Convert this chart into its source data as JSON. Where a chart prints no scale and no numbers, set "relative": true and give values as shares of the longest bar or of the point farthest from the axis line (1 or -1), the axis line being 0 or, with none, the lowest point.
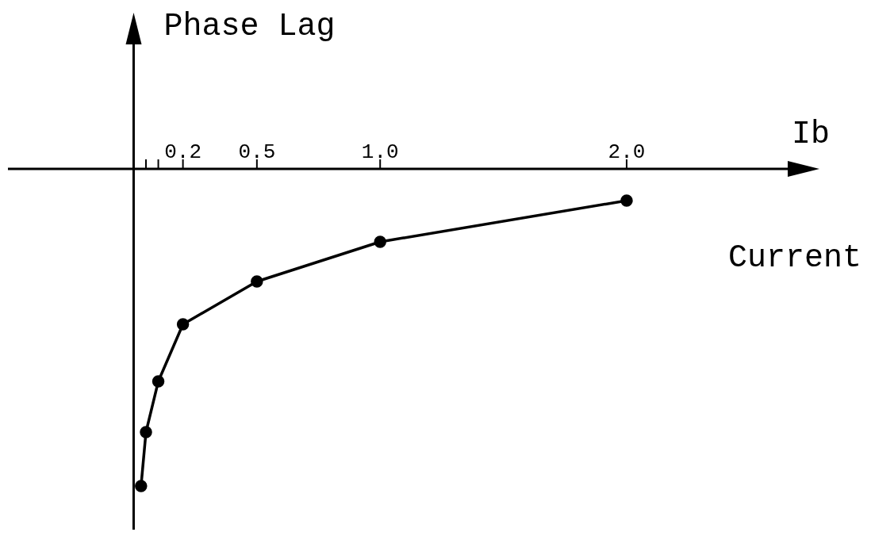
{
  "chart_data": {
    "type": "line",
    "ylabel": "Phase Lag",
    "xlabel": "Ib",
    "annotations": [
      "Current"
    ],
    "x": [
      0.03,
      0.05,
      0.1,
      0.2,
      0.5,
      1.0,
      2.0
    ],
    "series": [
      {
        "color": "#000000",
        "values": [
          -1,
          -0.83,
          -0.67,
          -0.49,
          -0.355,
          -0.23,
          -0.1
        ]
      }
    ],
    "relative": true,
    "marker": "circle",
    "line_style": "solid",
    "xlim": [
      -0.51,
      2.75
    ],
    "xticks": [
      {
        "value": 0.05,
        "label": null
      },
      {
        "value": 0.1,
        "label": null
      },
      {
        "value": 0.2,
        "label": "0.2"
      },
      {
        "value": 0.5,
        "label": "0.5"
      },
      {
        "value": 1.0,
        "label": "1.0"
      },
      {
        "value": 2.0,
        "label": "2.0"
      }
    ]
  }
}
